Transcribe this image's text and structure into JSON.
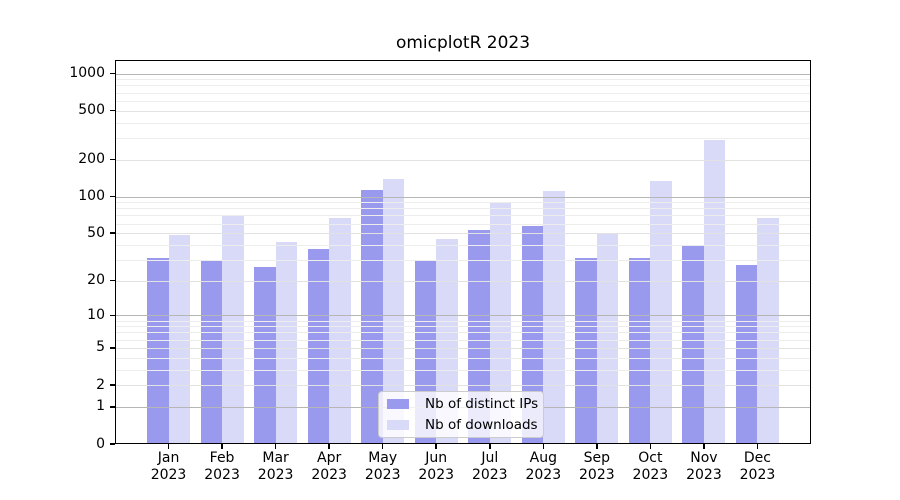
{
  "chart_data": {
    "type": "bar",
    "title": "omicplotR 2023",
    "categories": [
      "Jan",
      "Feb",
      "Mar",
      "Apr",
      "May",
      "Jun",
      "Jul",
      "Aug",
      "Sep",
      "Oct",
      "Nov",
      "Dec"
    ],
    "year": "2023",
    "series": [
      {
        "name": "Nb of distinct IPs",
        "color": "#9999ee",
        "values": [
          31,
          30,
          26,
          37,
          114,
          30,
          53,
          57,
          31,
          31,
          40,
          27
        ]
      },
      {
        "name": "Nb of downloads",
        "color": "#d9d9f8",
        "values": [
          48,
          69,
          42,
          67,
          140,
          45,
          90,
          110,
          49,
          134,
          290,
          67
        ]
      }
    ],
    "xlabel": "",
    "ylabel": "",
    "yscale": "log1p",
    "yticks": [
      0,
      1,
      2,
      5,
      10,
      20,
      50,
      100,
      200,
      500,
      1000
    ],
    "ylim": [
      0,
      1280
    ],
    "grid": true,
    "minor_grid": true,
    "legend_position": "lower center",
    "colors": {
      "background": "#ffffff",
      "spine": "#000000",
      "grid_major": "#b6b6b6",
      "grid_labeled": "#e2e2e2",
      "grid_minor": "#ededed",
      "text": "#000000"
    }
  }
}
